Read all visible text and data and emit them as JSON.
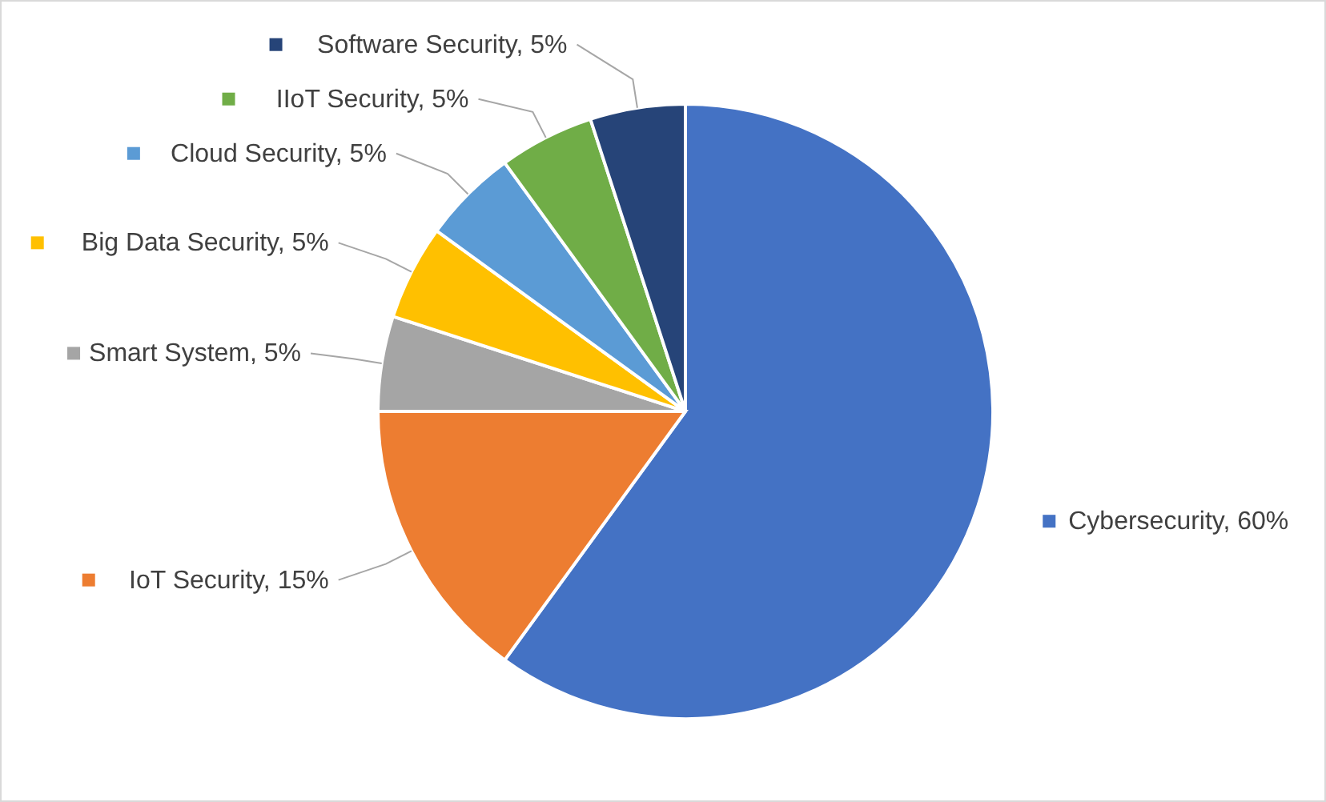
{
  "chart_data": {
    "type": "pie",
    "categories": [
      "Cybersecurity",
      "IoT Security",
      "Smart System",
      "Big Data Security",
      "Cloud Security",
      "IIoT Security",
      "Software Security"
    ],
    "values": [
      60,
      15,
      5,
      5,
      5,
      5,
      5
    ],
    "colors": [
      "#4472c4",
      "#ed7d31",
      "#a5a5a5",
      "#ffc000",
      "#5b9bd5",
      "#70ad47",
      "#264478"
    ],
    "value_labels": [
      "60%",
      "15%",
      "5%",
      "5%",
      "5%",
      "5%",
      "5%"
    ],
    "legend": "left"
  }
}
